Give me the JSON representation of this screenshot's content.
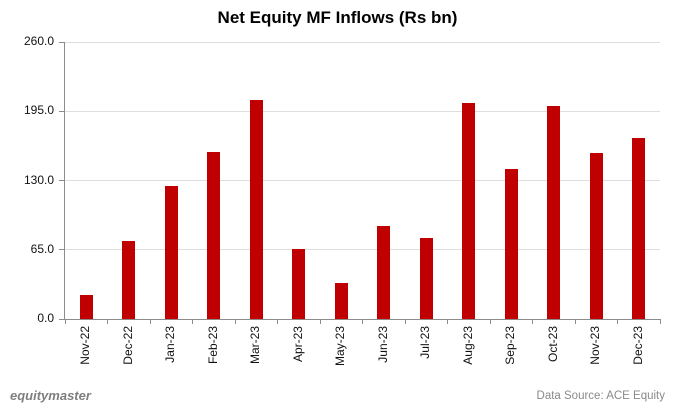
{
  "title": "Net Equity MF Inflows (Rs bn)",
  "footer": {
    "brand": "equitymaster",
    "source": "Data Source: ACE Equity"
  },
  "colors": {
    "bar": "#c00000",
    "gridline": "#dedede",
    "axis": "#8c8c8c",
    "text": "#111111",
    "footer_text": "#7f7f7f"
  },
  "chart_data": {
    "type": "bar",
    "title": "Net Equity MF Inflows (Rs bn)",
    "categories": [
      "Nov-22",
      "Dec-22",
      "Jan-23",
      "Feb-23",
      "Mar-23",
      "Apr-23",
      "May-23",
      "Jun-23",
      "Jul-23",
      "Aug-23",
      "Sep-23",
      "Oct-23",
      "Nov-23",
      "Dec-23"
    ],
    "values": [
      23,
      73,
      125,
      157,
      206,
      66,
      34,
      87,
      76,
      203,
      141,
      200,
      156,
      170
    ],
    "xlabel": "",
    "ylabel": "",
    "ylim": [
      0,
      260
    ],
    "yticks": [
      0.0,
      65.0,
      130.0,
      195.0,
      260.0
    ],
    "ytick_labels": [
      "0.0",
      "65.0",
      "130.0",
      "195.0",
      "260.0"
    ],
    "grid": true,
    "legend": "none",
    "bar_color": "#c00000"
  }
}
